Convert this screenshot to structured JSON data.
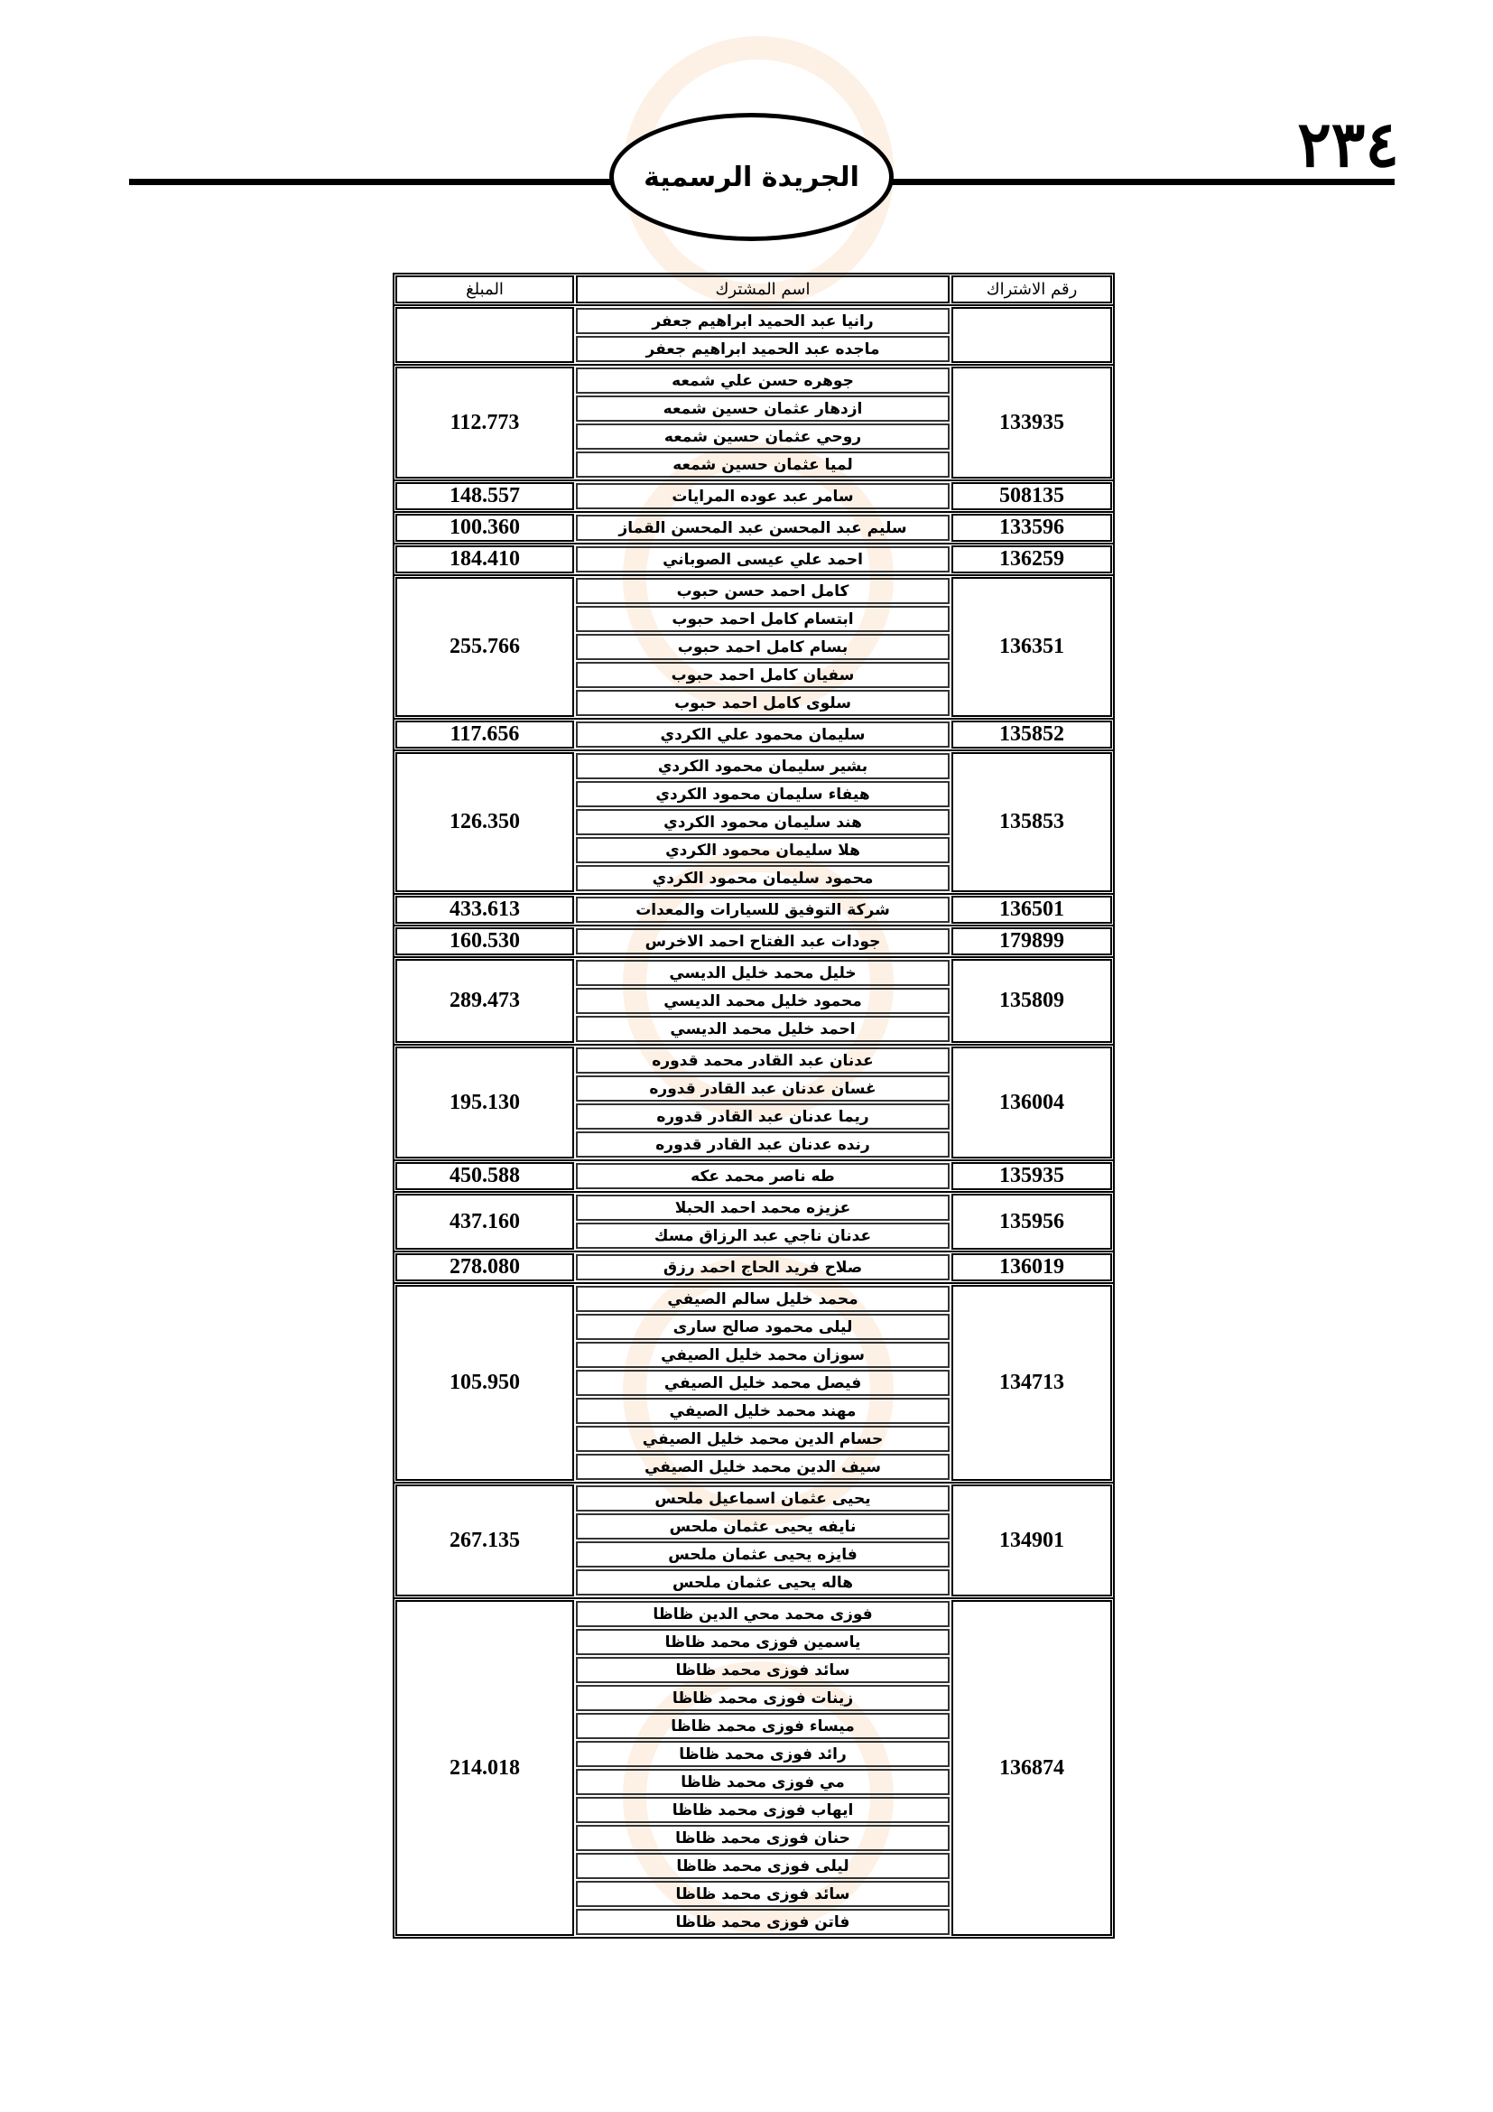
{
  "header": {
    "title": "الجريدة الرسمية",
    "page_number": "٢٣٤"
  },
  "table": {
    "columns": {
      "number": "رقم الاشتراك",
      "name": "اسم المشترك",
      "amount": "المبلغ"
    },
    "groups": [
      {
        "number": "",
        "amount": "",
        "names": [
          "رانيا عبد الحميد ابراهيم جعفر",
          "ماجده عبد الحميد ابراهيم جعفر"
        ]
      },
      {
        "number": "133935",
        "amount": "112.773",
        "names": [
          "جوهره حسن علي شمعه",
          "ازدهار عثمان حسين شمعه",
          "روحي عثمان حسين شمعه",
          "لميا عثمان حسين شمعه"
        ]
      },
      {
        "number": "508135",
        "amount": "148.557",
        "names": [
          "سامر عبد عوده المرايات"
        ]
      },
      {
        "number": "133596",
        "amount": "100.360",
        "names": [
          "سليم عبد المحسن عبد المحسن القماز"
        ]
      },
      {
        "number": "136259",
        "amount": "184.410",
        "names": [
          "احمد علي عيسى الصوباني"
        ]
      },
      {
        "number": "136351",
        "amount": "255.766",
        "names": [
          "كامل احمد حسن حبوب",
          "ابتسام كامل احمد حبوب",
          "بسام كامل احمد حبوب",
          "سفيان كامل احمد حبوب",
          "سلوى كامل احمد حبوب"
        ]
      },
      {
        "number": "135852",
        "amount": "117.656",
        "names": [
          "سليمان محمود علي الكردي"
        ]
      },
      {
        "number": "135853",
        "amount": "126.350",
        "names": [
          "بشير سليمان محمود الكردي",
          "هيفاء سليمان محمود الكردي",
          "هند سليمان محمود الكردي",
          "هلا سليمان محمود الكردي",
          "محمود سليمان محمود الكردي"
        ]
      },
      {
        "number": "136501",
        "amount": "433.613",
        "names": [
          "شركة التوفيق للسيارات والمعدات"
        ]
      },
      {
        "number": "179899",
        "amount": "160.530",
        "names": [
          "جودات عبد الفتاح احمد الاخرس"
        ]
      },
      {
        "number": "135809",
        "amount": "289.473",
        "names": [
          "خليل محمد خليل الديسي",
          "محمود خليل محمد الديسي",
          "احمد خليل محمد الديسي"
        ]
      },
      {
        "number": "136004",
        "amount": "195.130",
        "names": [
          "عدنان عبد القادر محمد قدوره",
          "غسان عدنان عبد القادر قدوره",
          "ريما عدنان عبد القادر قدوره",
          "رنده عدنان عبد القادر قدوره"
        ]
      },
      {
        "number": "135935",
        "amount": "450.588",
        "names": [
          "طه ناصر محمد عكه"
        ]
      },
      {
        "number": "135956",
        "amount": "437.160",
        "names": [
          "عزيزه محمد احمد الحبلا",
          "عدنان ناجي عبد الرزاق مسك"
        ]
      },
      {
        "number": "136019",
        "amount": "278.080",
        "names": [
          "صلاح فريد الحاج احمد رزق"
        ]
      },
      {
        "number": "134713",
        "amount": "105.950",
        "names": [
          "محمد خليل سالم الصيفي",
          "ليلى محمود صالح سارى",
          "سوزان محمد خليل الصيفي",
          "فيصل محمد خليل الصيفي",
          "مهند محمد خليل الصيفي",
          "حسام الدين محمد خليل الصيفي",
          "سيف الدين محمد خليل الصيفي"
        ]
      },
      {
        "number": "134901",
        "amount": "267.135",
        "names": [
          "يحيى عثمان اسماعيل ملحس",
          "نايفه يحيى عثمان ملحس",
          "فايزه يحيى عثمان ملحس",
          "هاله يحيى عثمان ملحس"
        ]
      },
      {
        "number": "136874",
        "amount": "214.018",
        "names": [
          "فوزى محمد محي الدين ظاظا",
          "ياسمين فوزى محمد ظاظا",
          "سائد فوزى محمد ظاظا",
          "زينات فوزى محمد ظاظا",
          "ميساء فوزى محمد ظاظا",
          "رائد فوزى محمد ظاظا",
          "مي فوزى محمد ظاظا",
          "ايهاب فوزى محمد ظاظا",
          "حنان فوزى محمد ظاظا",
          "ليلى فوزى محمد ظاظا",
          "سائد فوزى محمد ظاظا",
          "فاتن فوزى محمد ظاظا"
        ]
      }
    ]
  }
}
